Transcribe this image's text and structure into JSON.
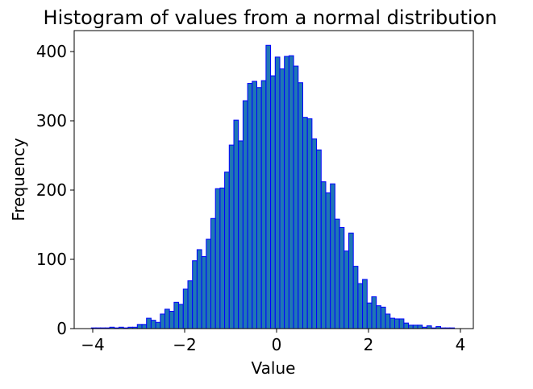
{
  "chart_data": {
    "type": "bar",
    "title": "Histogram of values from a normal distribution",
    "xlabel": "Value",
    "ylabel": "Frequency",
    "xlim": [
      -4.35,
      4.3
    ],
    "ylim": [
      0,
      430
    ],
    "xticks": [
      -4,
      -2,
      0,
      2,
      4
    ],
    "xtick_labels": [
      "−4",
      "−2",
      "0",
      "2",
      "4"
    ],
    "yticks": [
      0,
      100,
      200,
      300,
      400
    ],
    "ytick_labels": [
      "0",
      "100",
      "200",
      "300",
      "400"
    ],
    "grid": false,
    "bin_start": -4.03,
    "bin_width": 0.1,
    "counts": [
      1,
      1,
      1,
      1,
      2,
      1,
      2,
      1,
      2,
      2,
      6,
      6,
      15,
      12,
      9,
      21,
      28,
      25,
      38,
      35,
      57,
      69,
      98,
      114,
      104,
      129,
      159,
      202,
      203,
      226,
      265,
      301,
      271,
      329,
      354,
      357,
      348,
      358,
      409,
      365,
      392,
      375,
      393,
      394,
      379,
      355,
      305,
      303,
      274,
      258,
      212,
      196,
      209,
      158,
      146,
      112,
      138,
      90,
      65,
      71,
      37,
      46,
      33,
      31,
      21,
      15,
      14,
      14,
      8,
      5,
      5,
      5,
      2,
      4,
      1,
      3,
      1,
      1,
      1
    ],
    "colors": {
      "fill": "#1f77b4",
      "edge": "#0000ff"
    }
  }
}
